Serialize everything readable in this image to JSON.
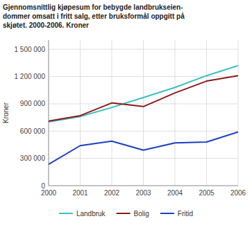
{
  "chart_data": {
    "type": "line",
    "title": "Gjennomsnittlig kjøpesum for bebygde landbrukseien-\ndommer omsatt i fritt salg, etter bruksformål oppgitt på\nskjøtet. 2000-2006. Kroner",
    "y_label": "Kroner",
    "x": [
      2000,
      2001,
      2002,
      2003,
      2004,
      2005,
      2006
    ],
    "series": [
      {
        "name": "Landbruk",
        "color": "#3bbfbf",
        "values": [
          700000,
          760000,
          860000,
          970000,
          1080000,
          1210000,
          1320000
        ]
      },
      {
        "name": "Bolig",
        "color": "#8b1a1a",
        "values": [
          710000,
          770000,
          910000,
          870000,
          1020000,
          1150000,
          1210000
        ]
      },
      {
        "name": "Fritid",
        "color": "#1a3fbf",
        "values": [
          235000,
          440000,
          490000,
          390000,
          470000,
          480000,
          590000
        ]
      }
    ],
    "xlim": [
      2000,
      2006
    ],
    "xticks": [
      2000,
      2001,
      2002,
      2003,
      2004,
      2005,
      2006
    ],
    "ylim": [
      0,
      1600000
    ],
    "yticks": [
      0,
      {
        "value": 300000,
        "label": "300 000"
      },
      {
        "value": 600000,
        "label": "600 000"
      },
      {
        "value": 900000,
        "label": "900 000"
      },
      {
        "value": 1200000,
        "label": "1 200 000"
      },
      {
        "value": 1500000,
        "label": "1 500 000"
      }
    ],
    "grid": true,
    "legend": "bottom"
  }
}
